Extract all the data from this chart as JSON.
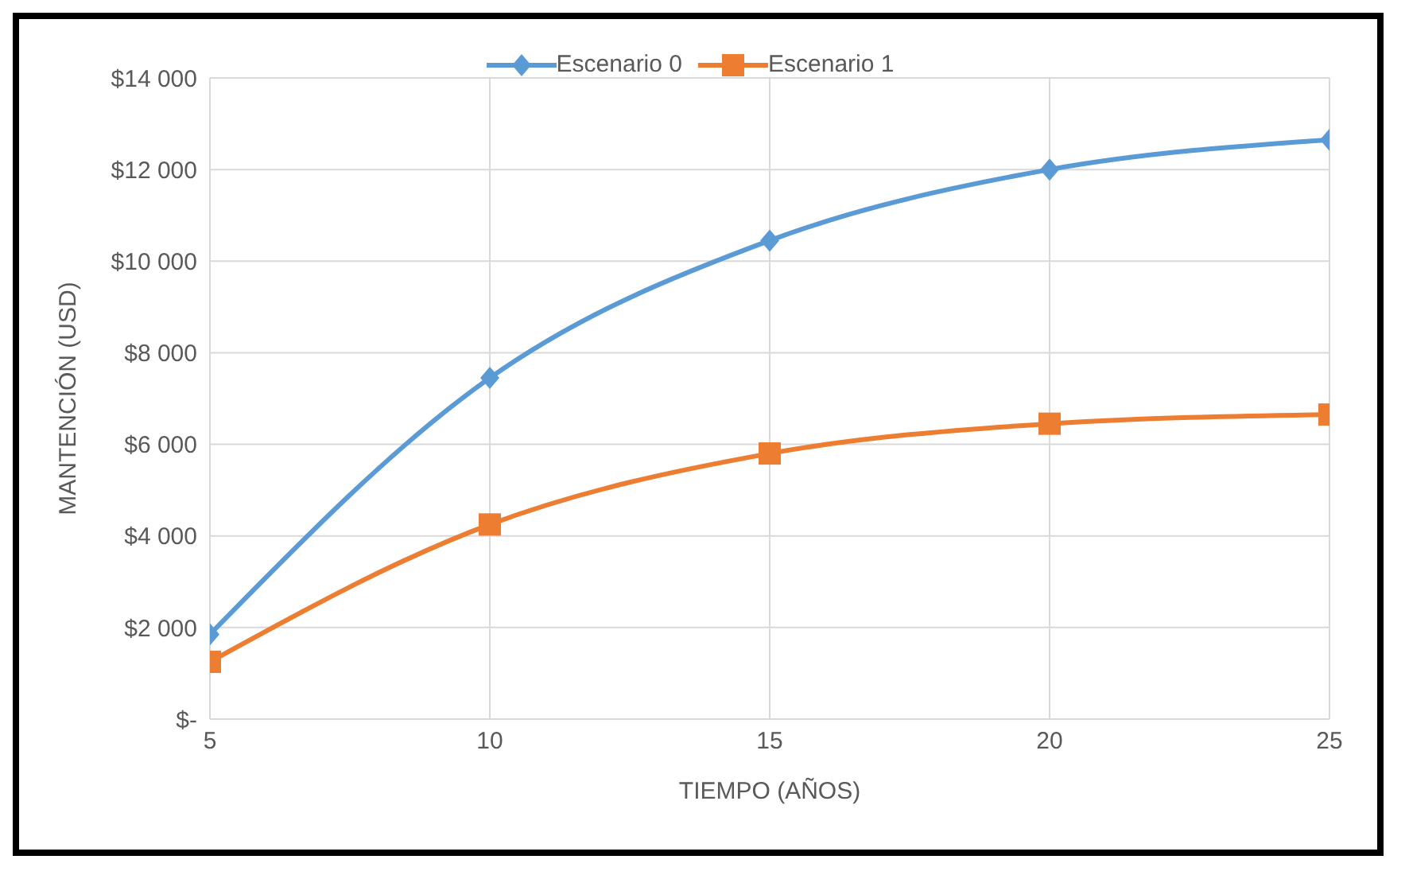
{
  "chart_data": {
    "type": "line",
    "xlabel": "TIEMPO (AÑOS)",
    "ylabel": "MANTENCIÓN (USD)",
    "x": [
      5,
      10,
      15,
      20,
      25
    ],
    "series": [
      {
        "name": "Escenario 0",
        "color": "#5b9bd5",
        "marker": "diamond",
        "values": [
          1850,
          7450,
          10450,
          12000,
          12650
        ]
      },
      {
        "name": "Escenario 1",
        "color": "#ed7d31",
        "marker": "square",
        "values": [
          1250,
          4250,
          5800,
          6450,
          6650
        ]
      }
    ],
    "xlim": [
      5,
      25
    ],
    "xticks": [
      5,
      10,
      15,
      20,
      25
    ],
    "ylim": [
      0,
      14000
    ],
    "yticks": [
      {
        "value": 0,
        "label": "$-"
      },
      {
        "value": 2000,
        "label": "$2 000"
      },
      {
        "value": 4000,
        "label": "$4 000"
      },
      {
        "value": 6000,
        "label": "$6 000"
      },
      {
        "value": 8000,
        "label": "$8 000"
      },
      {
        "value": 10000,
        "label": "$10 000"
      },
      {
        "value": 12000,
        "label": "$12 000"
      },
      {
        "value": 14000,
        "label": "$14 000"
      }
    ],
    "grid": true,
    "legend": "top",
    "line_style": "solid"
  }
}
